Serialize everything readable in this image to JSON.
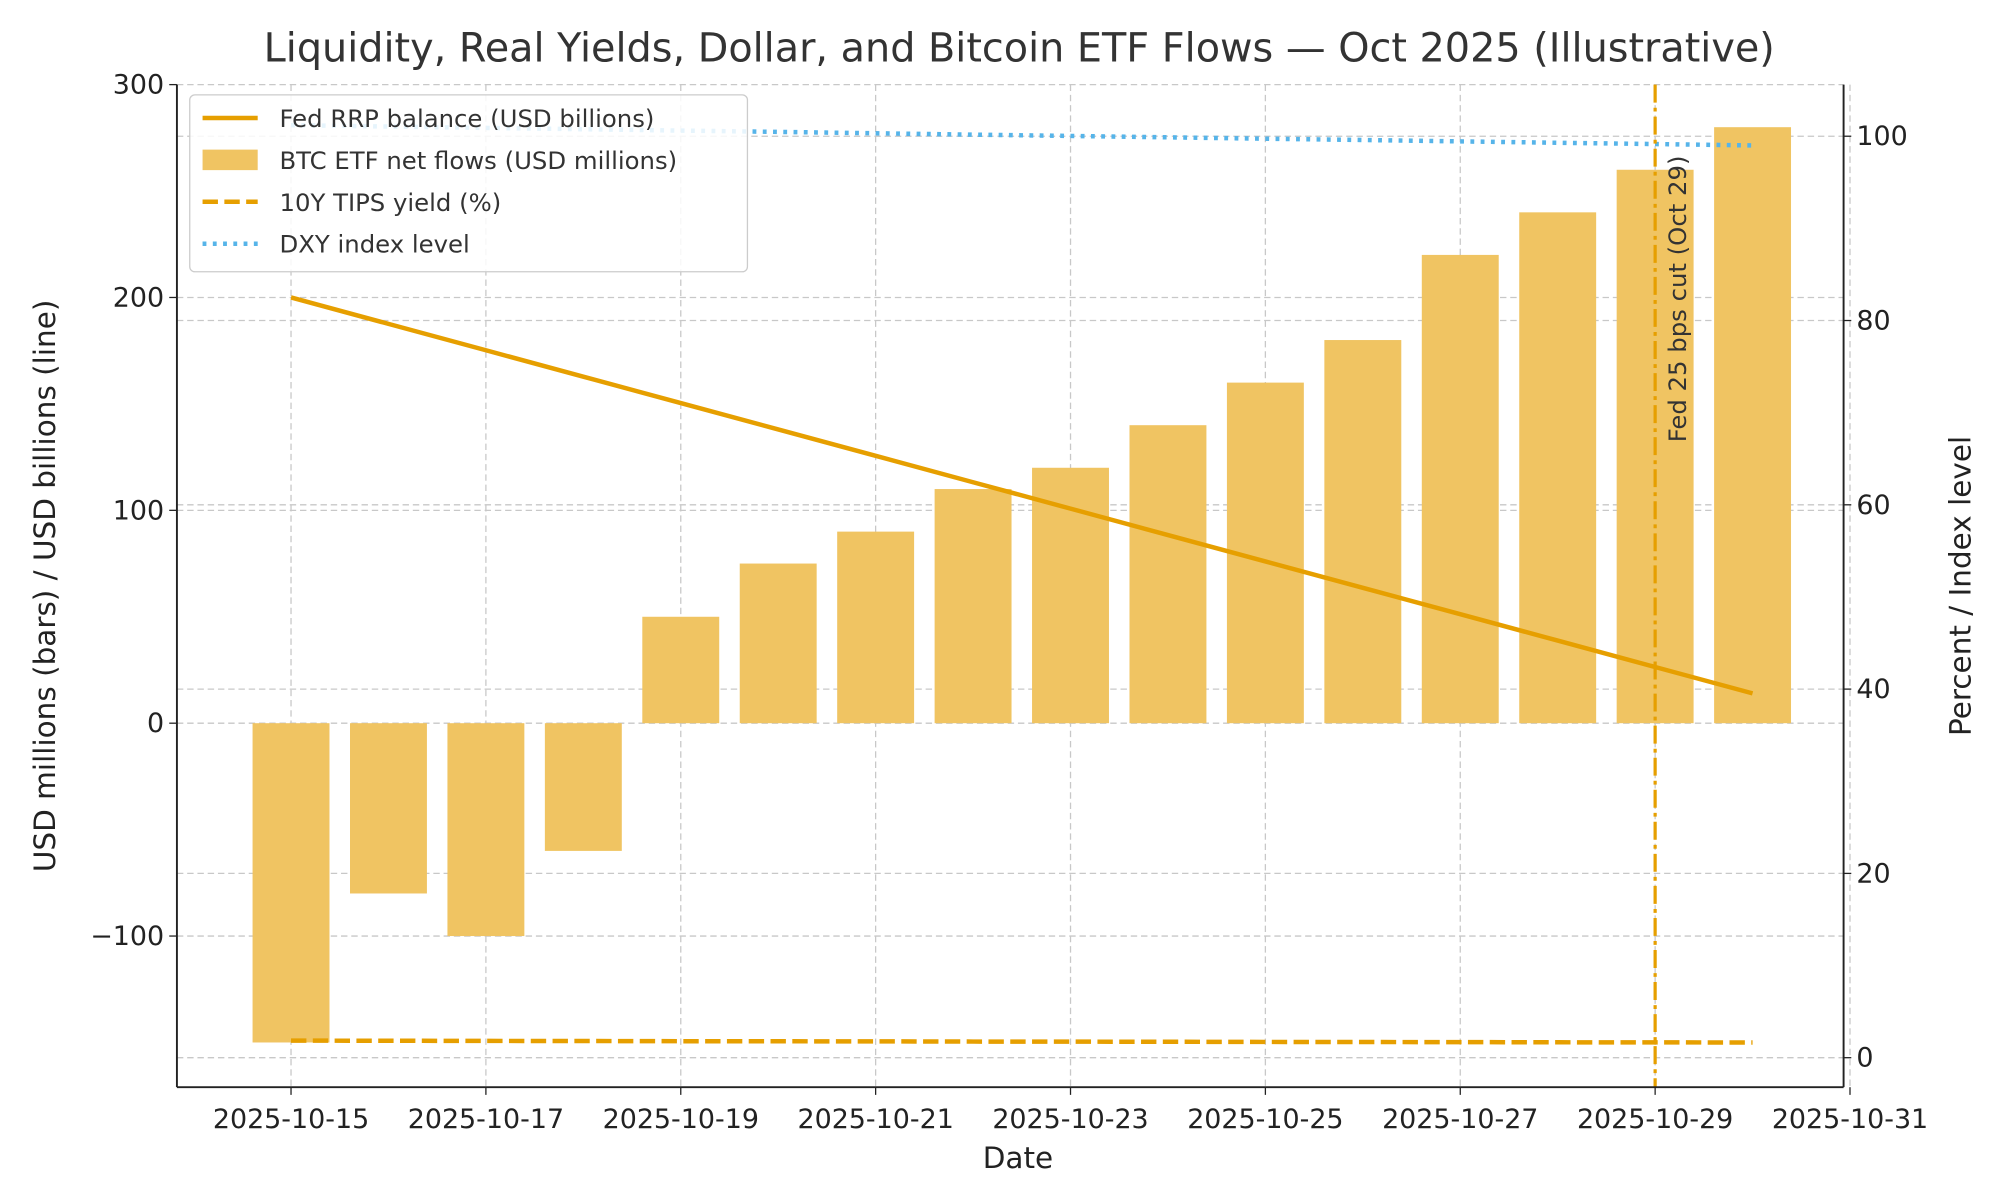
{
  "chart_data": {
    "type": "bar+line",
    "title": "Liquidity, Real Yields, Dollar, and Bitcoin ETF Flows — Oct 2025 (Illustrative)",
    "xlabel": "Date",
    "ylabel_left": "USD millions (bars) / USD billions (line)",
    "ylabel_right": "Percent / Index level",
    "x": [
      "2025-10-15",
      "2025-10-16",
      "2025-10-17",
      "2025-10-18",
      "2025-10-19",
      "2025-10-20",
      "2025-10-21",
      "2025-10-22",
      "2025-10-23",
      "2025-10-24",
      "2025-10-25",
      "2025-10-26",
      "2025-10-27",
      "2025-10-28",
      "2025-10-29",
      "2025-10-30"
    ],
    "x_ticks": [
      "2025-10-15",
      "2025-10-17",
      "2025-10-19",
      "2025-10-21",
      "2025-10-23",
      "2025-10-25",
      "2025-10-27",
      "2025-10-29",
      "2025-10-31"
    ],
    "ylim_left": [
      -171,
      300
    ],
    "yticks_left": [
      "−100",
      "0",
      "100",
      "200",
      "300"
    ],
    "ylim_right": [
      -3.2,
      105.6
    ],
    "yticks_right": [
      "0",
      "20",
      "40",
      "60",
      "80",
      "100"
    ],
    "grid": true,
    "legend_position": "top-left",
    "series": [
      {
        "name": "Fed RRP balance (USD billions)",
        "kind": "line",
        "axis": "left",
        "style": "solid",
        "color": "#E69F00",
        "values": [
          200,
          187.6,
          175.2,
          162.8,
          150.4,
          138,
          125.6,
          113.2,
          100.8,
          88.4,
          76,
          63.6,
          51.2,
          38.8,
          26.4,
          14
        ]
      },
      {
        "name": "BTC ETF net flows (USD millions)",
        "kind": "bar",
        "axis": "left",
        "color": "#F0C462",
        "values": [
          -150,
          -80,
          -100,
          -60,
          50,
          75,
          90,
          110,
          120,
          140,
          160,
          180,
          220,
          240,
          260,
          280
        ]
      },
      {
        "name": "10Y TIPS yield (%)",
        "kind": "line",
        "axis": "right",
        "style": "dashed",
        "color": "#E69F00",
        "values": [
          1.85,
          1.84,
          1.82,
          1.81,
          1.79,
          1.78,
          1.77,
          1.75,
          1.74,
          1.73,
          1.71,
          1.7,
          1.69,
          1.67,
          1.66,
          1.65
        ]
      },
      {
        "name": "DXY index level",
        "kind": "line",
        "axis": "right",
        "style": "dotted",
        "color": "#56B4E9",
        "values": [
          101.2,
          101.05,
          100.9,
          100.76,
          100.61,
          100.47,
          100.32,
          100.17,
          100.03,
          99.88,
          99.73,
          99.59,
          99.44,
          99.29,
          99.15,
          99.0
        ]
      }
    ],
    "annotation": {
      "x": "2025-10-29",
      "text": "Fed 25 bps cut (Oct 29)",
      "style": "dash-dot",
      "color": "#E69F00"
    }
  }
}
